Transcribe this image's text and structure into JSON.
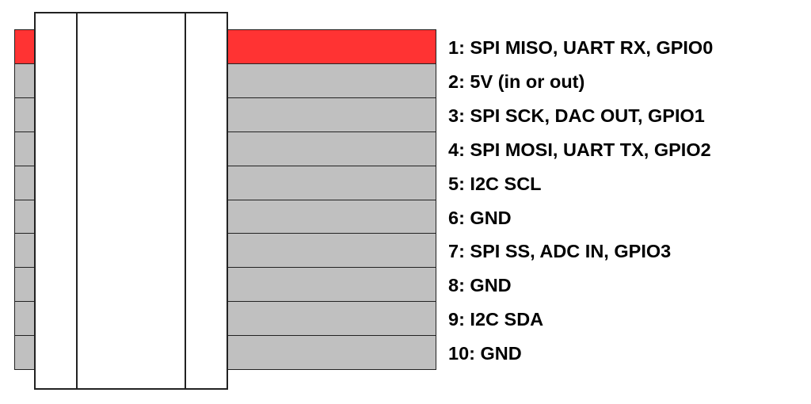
{
  "colors": {
    "pin1": "#ff3333",
    "other": "#c0c0c0",
    "outline": "#222222"
  },
  "pins": [
    {
      "label": "1: SPI MISO, UART RX, GPIO0",
      "highlight": true
    },
    {
      "label": "2: 5V (in or out)",
      "highlight": false
    },
    {
      "label": "3: SPI SCK, DAC OUT, GPIO1",
      "highlight": false
    },
    {
      "label": "4: SPI MOSI, UART TX, GPIO2",
      "highlight": false
    },
    {
      "label": "5: I2C SCL",
      "highlight": false
    },
    {
      "label": "6: GND",
      "highlight": false
    },
    {
      "label": "7: SPI SS, ADC IN, GPIO3",
      "highlight": false
    },
    {
      "label": "8: GND",
      "highlight": false
    },
    {
      "label": "9: I2C SDA",
      "highlight": false
    },
    {
      "label": "10: GND",
      "highlight": false
    }
  ]
}
